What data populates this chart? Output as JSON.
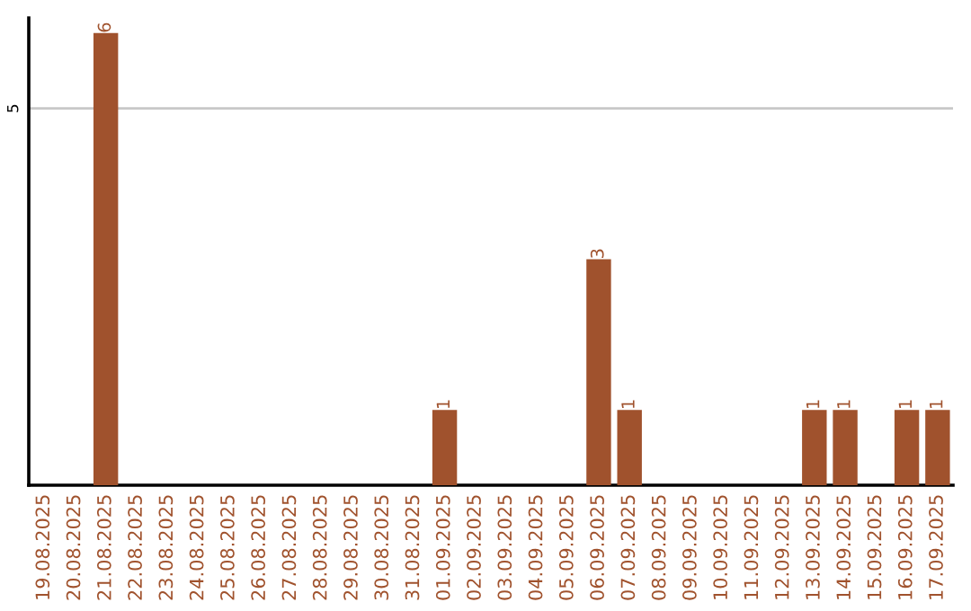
{
  "chart_data": {
    "type": "bar",
    "categories": [
      "19.08.2025",
      "20.08.2025",
      "21.08.2025",
      "22.08.2025",
      "23.08.2025",
      "24.08.2025",
      "25.08.2025",
      "26.08.2025",
      "27.08.2025",
      "28.08.2025",
      "29.08.2025",
      "30.08.2025",
      "31.08.2025",
      "01.09.2025",
      "02.09.2025",
      "03.09.2025",
      "04.09.2025",
      "05.09.2025",
      "06.09.2025",
      "07.09.2025",
      "08.09.2025",
      "09.09.2025",
      "10.09.2025",
      "11.09.2025",
      "12.09.2025",
      "13.09.2025",
      "14.09.2025",
      "15.09.2025",
      "16.09.2025",
      "17.09.2025"
    ],
    "values": [
      0,
      0,
      6,
      0,
      0,
      0,
      0,
      0,
      0,
      0,
      0,
      0,
      0,
      1,
      0,
      0,
      0,
      0,
      3,
      1,
      0,
      0,
      0,
      0,
      0,
      1,
      1,
      0,
      1,
      1
    ],
    "value_labels": [
      null,
      null,
      "6",
      null,
      null,
      null,
      null,
      null,
      null,
      null,
      null,
      null,
      null,
      "1",
      null,
      null,
      null,
      null,
      "3",
      "1",
      null,
      null,
      null,
      null,
      null,
      "1",
      "1",
      null,
      "1",
      "1"
    ],
    "color": "#a0522d",
    "ylim": [
      0,
      6.2
    ],
    "yticks": [
      5
    ],
    "grid": "y",
    "legend": false
  }
}
